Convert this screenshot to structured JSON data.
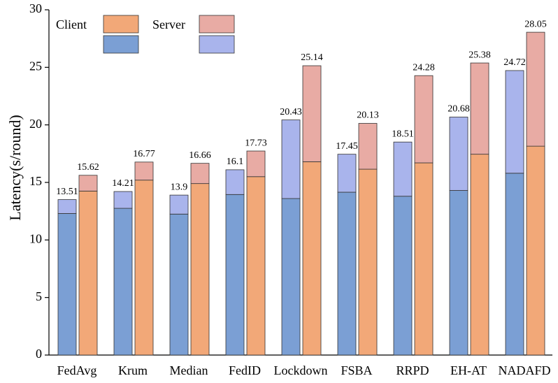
{
  "chart_data": {
    "type": "grouped_stacked_bar",
    "ylabel": "Latency(s/round)",
    "categories": [
      "FedAvg",
      "Krum",
      "Median",
      "FedID",
      "Lockdown",
      "FSBA",
      "RRPD",
      "EH-AT",
      "NADAFD"
    ],
    "ylim": [
      0,
      30
    ],
    "yticks": [
      0,
      5,
      10,
      15,
      20,
      25,
      30
    ],
    "legend_names": [
      "Client",
      "Server"
    ],
    "groups": [
      {
        "colors": [
          "#7b9fd4",
          "#a9b4ec"
        ],
        "segments": [
          [
            12.3,
            12.75,
            12.25,
            13.95,
            13.6,
            14.15,
            13.8,
            14.3,
            15.8
          ],
          [
            1.21,
            1.46,
            1.65,
            2.15,
            6.83,
            3.3,
            4.71,
            6.38,
            8.92
          ]
        ],
        "totals": [
          13.51,
          14.21,
          13.9,
          16.1,
          20.43,
          17.45,
          18.51,
          20.68,
          24.72
        ]
      },
      {
        "colors": [
          "#f2a878",
          "#e8aba4"
        ],
        "segments": [
          [
            14.25,
            15.2,
            14.9,
            15.5,
            16.8,
            16.15,
            16.7,
            17.45,
            18.15
          ],
          [
            1.37,
            1.57,
            1.76,
            2.23,
            8.34,
            3.98,
            7.58,
            7.93,
            9.9
          ]
        ],
        "totals": [
          15.62,
          16.77,
          16.66,
          17.73,
          25.14,
          20.13,
          24.28,
          25.38,
          28.05
        ]
      }
    ]
  }
}
